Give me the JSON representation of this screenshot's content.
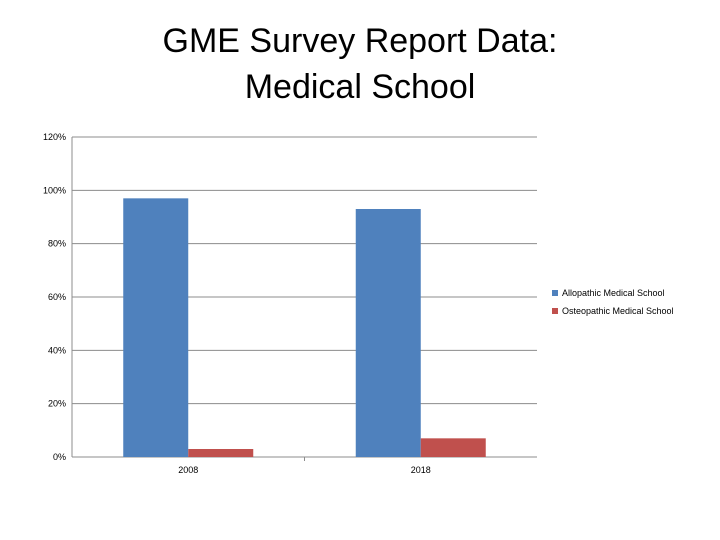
{
  "chart_data": {
    "type": "bar",
    "title": [
      "GME Survey Report Data:",
      "Medical School"
    ],
    "categories": [
      "2008",
      "2018"
    ],
    "series": [
      {
        "name": "Allopathic Medical School",
        "values": [
          97,
          93
        ],
        "color": "#4f81bd"
      },
      {
        "name": "Osteopathic Medical School",
        "values": [
          3,
          7
        ],
        "color": "#c0504d"
      }
    ],
    "y_ticks": [
      "0%",
      "20%",
      "40%",
      "60%",
      "80%",
      "100%",
      "120%"
    ],
    "ylim": [
      0,
      120
    ],
    "grid": true,
    "legend_position": "right",
    "xlabel": "",
    "ylabel": ""
  }
}
